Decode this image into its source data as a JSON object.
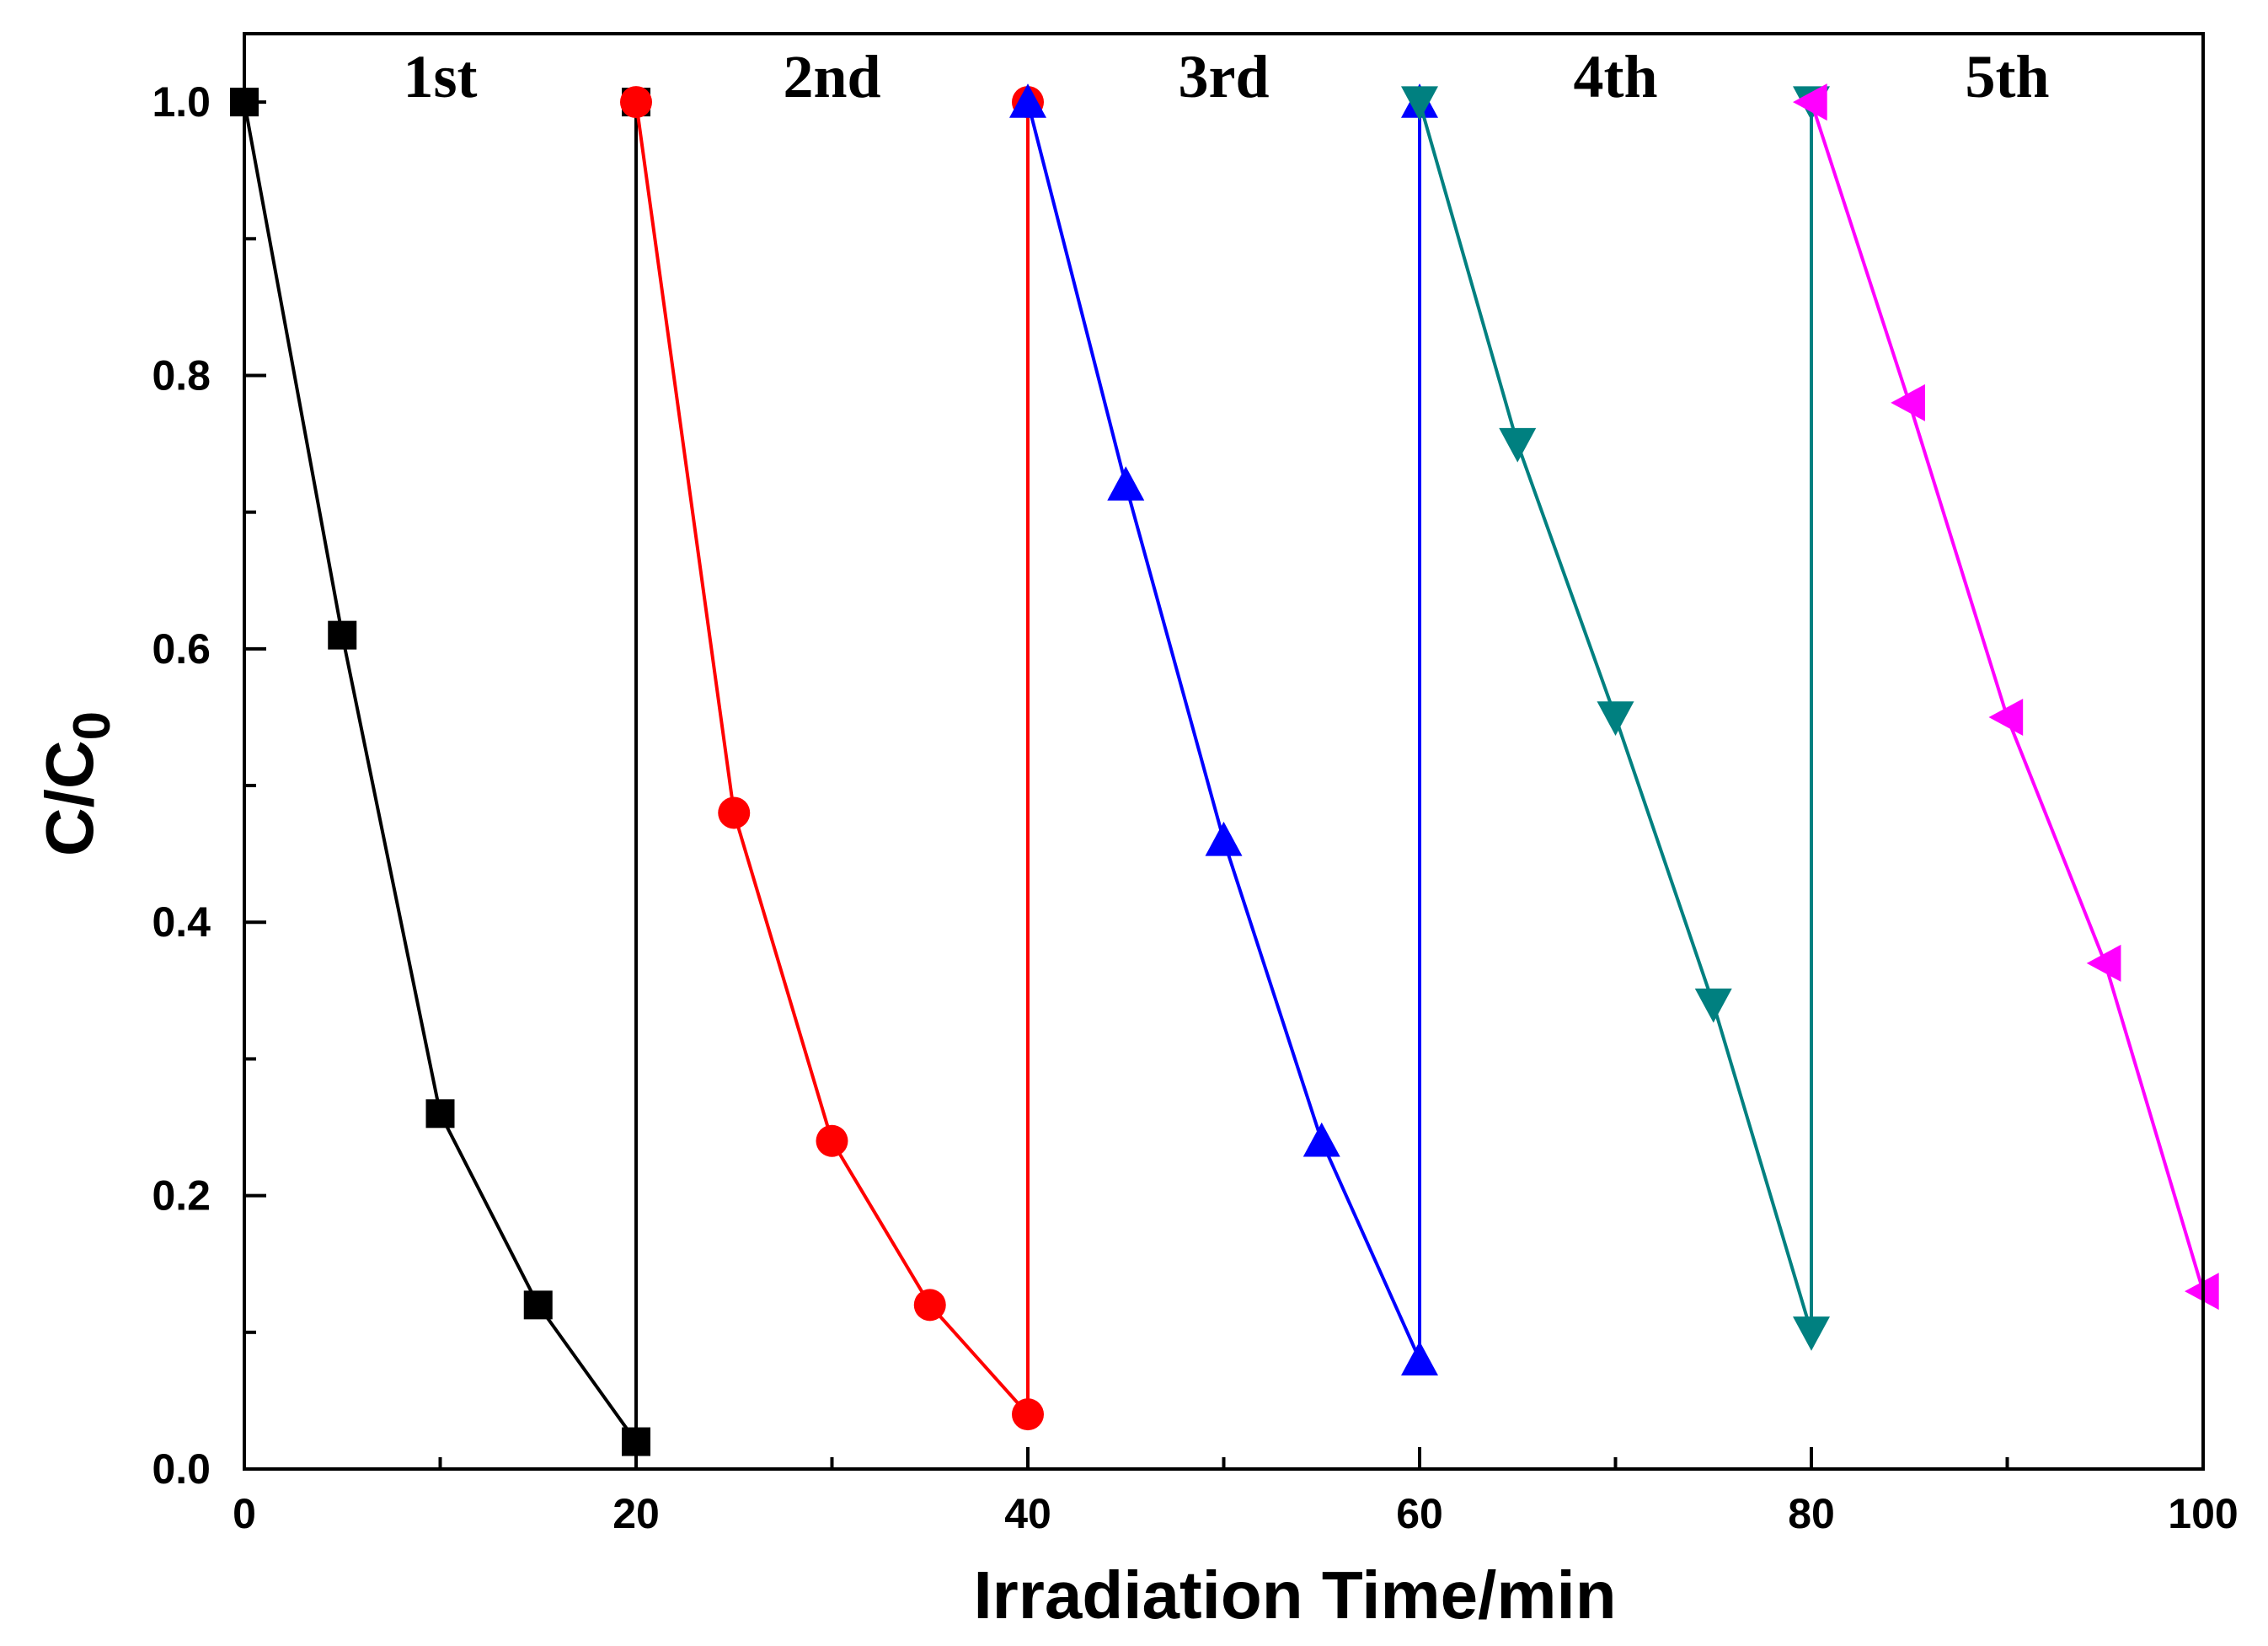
{
  "chart_data": {
    "type": "line",
    "xlabel": "Irradiation Time/min",
    "ylabel": {
      "main": "C/C",
      "sub": "0"
    },
    "xlim": [
      0,
      100
    ],
    "ylim": [
      0,
      1.05
    ],
    "x_ticks": [
      0,
      20,
      40,
      60,
      80,
      100
    ],
    "x_minor_ticks": [
      10,
      30,
      50,
      70,
      90
    ],
    "y_ticks": [
      0.0,
      0.2,
      0.4,
      0.6,
      0.8,
      1.0
    ],
    "y_minor_ticks": [
      0.1,
      0.3,
      0.5,
      0.7,
      0.9
    ],
    "x_tick_labels": [
      "0",
      "20",
      "40",
      "60",
      "80",
      "100"
    ],
    "y_tick_labels": [
      "0.0",
      "0.2",
      "0.4",
      "0.6",
      "0.8",
      "1.0"
    ],
    "annotations": [
      {
        "text": "1st",
        "x": 10,
        "y": 1.01
      },
      {
        "text": "2nd",
        "x": 30,
        "y": 1.01
      },
      {
        "text": "3rd",
        "x": 50,
        "y": 1.01
      },
      {
        "text": "4th",
        "x": 70,
        "y": 1.01
      },
      {
        "text": "5th",
        "x": 90,
        "y": 1.01
      }
    ],
    "series": [
      {
        "color": "#000000",
        "marker": "square",
        "x": [
          0,
          5,
          10,
          15,
          20,
          20
        ],
        "y": [
          1.0,
          0.61,
          0.26,
          0.12,
          0.02,
          1.0
        ]
      },
      {
        "color": "#ff0000",
        "marker": "circle",
        "x": [
          20,
          25,
          30,
          35,
          40,
          40
        ],
        "y": [
          1.0,
          0.48,
          0.24,
          0.12,
          0.04,
          1.0
        ]
      },
      {
        "color": "#0000ff",
        "marker": "triangle-up",
        "x": [
          40,
          45,
          50,
          55,
          60,
          60
        ],
        "y": [
          1.0,
          0.72,
          0.46,
          0.24,
          0.08,
          1.0
        ]
      },
      {
        "color": "#008080",
        "marker": "triangle-down",
        "x": [
          60,
          65,
          70,
          75,
          80,
          80
        ],
        "y": [
          1.0,
          0.75,
          0.55,
          0.34,
          0.1,
          1.0
        ]
      },
      {
        "color": "#ff00ff",
        "marker": "triangle-left",
        "x": [
          80,
          85,
          90,
          95,
          100
        ],
        "y": [
          1.0,
          0.78,
          0.55,
          0.37,
          0.13
        ]
      }
    ]
  }
}
